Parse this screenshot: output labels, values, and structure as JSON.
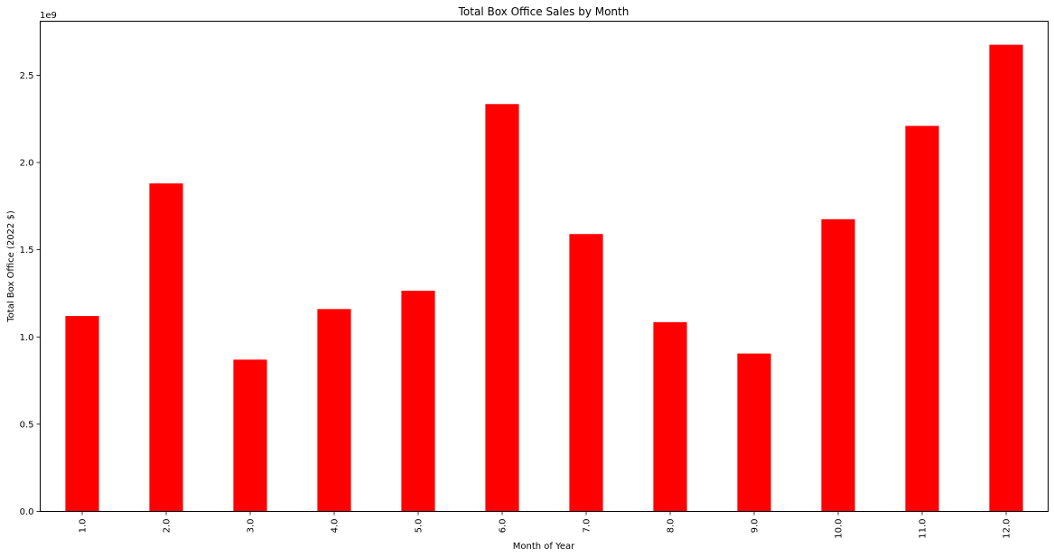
{
  "chart_data": {
    "type": "bar",
    "title": "Total Box Office Sales by Month",
    "xlabel": "Month of Year",
    "ylabel": "Total Box Office (2022 $)",
    "categories": [
      "1.0",
      "2.0",
      "3.0",
      "4.0",
      "5.0",
      "6.0",
      "7.0",
      "8.0",
      "9.0",
      "10.0",
      "11.0",
      "12.0"
    ],
    "values": [
      1.12,
      1.88,
      0.87,
      1.16,
      1.265,
      2.335,
      1.59,
      1.085,
      0.905,
      1.675,
      2.21,
      2.675
    ],
    "value_scale_label": "1e9",
    "ylim": [
      0,
      2.81
    ],
    "yticks": [
      0.0,
      0.5,
      1.0,
      1.5,
      2.0,
      2.5
    ],
    "ytick_labels": [
      "0.0",
      "0.5",
      "1.0",
      "1.5",
      "2.0",
      "2.5"
    ],
    "bar_color": "#ff0000",
    "grid": false,
    "legend": "none",
    "xtick_rotation": "vertical"
  }
}
